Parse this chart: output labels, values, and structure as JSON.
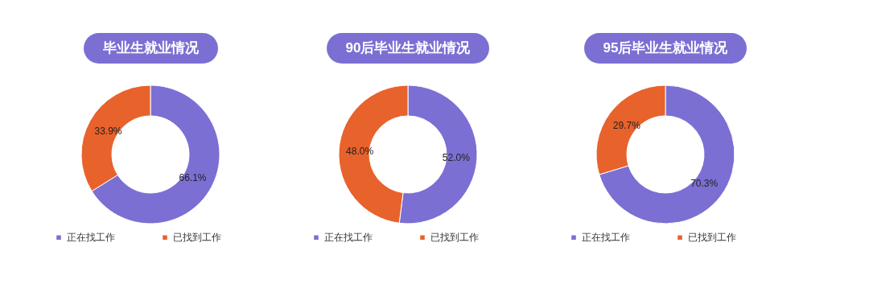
{
  "chart_data": [
    {
      "type": "donut",
      "title": "毕业生就业情况",
      "categories": [
        "正在找工作",
        "已找到工作"
      ],
      "values": [
        66.1,
        33.9
      ],
      "colors": [
        "#7b6fd3",
        "#e8622c"
      ],
      "value_labels": [
        "66.1%",
        "33.9%"
      ],
      "legend": "bottom"
    },
    {
      "type": "donut",
      "title": "90后毕业生就业情况",
      "categories": [
        "正在找工作",
        "已找到工作"
      ],
      "values": [
        52.0,
        48.0
      ],
      "colors": [
        "#7b6fd3",
        "#e8622c"
      ],
      "value_labels": [
        "52.0%",
        "48.0%"
      ],
      "legend": "bottom"
    },
    {
      "type": "donut",
      "title": "95后毕业生就业情况",
      "categories": [
        "正在找工作",
        "已找到工作"
      ],
      "values": [
        70.3,
        29.7
      ],
      "colors": [
        "#7b6fd3",
        "#e8622c"
      ],
      "value_labels": [
        "70.3%",
        "29.7%"
      ],
      "legend": "bottom"
    }
  ]
}
